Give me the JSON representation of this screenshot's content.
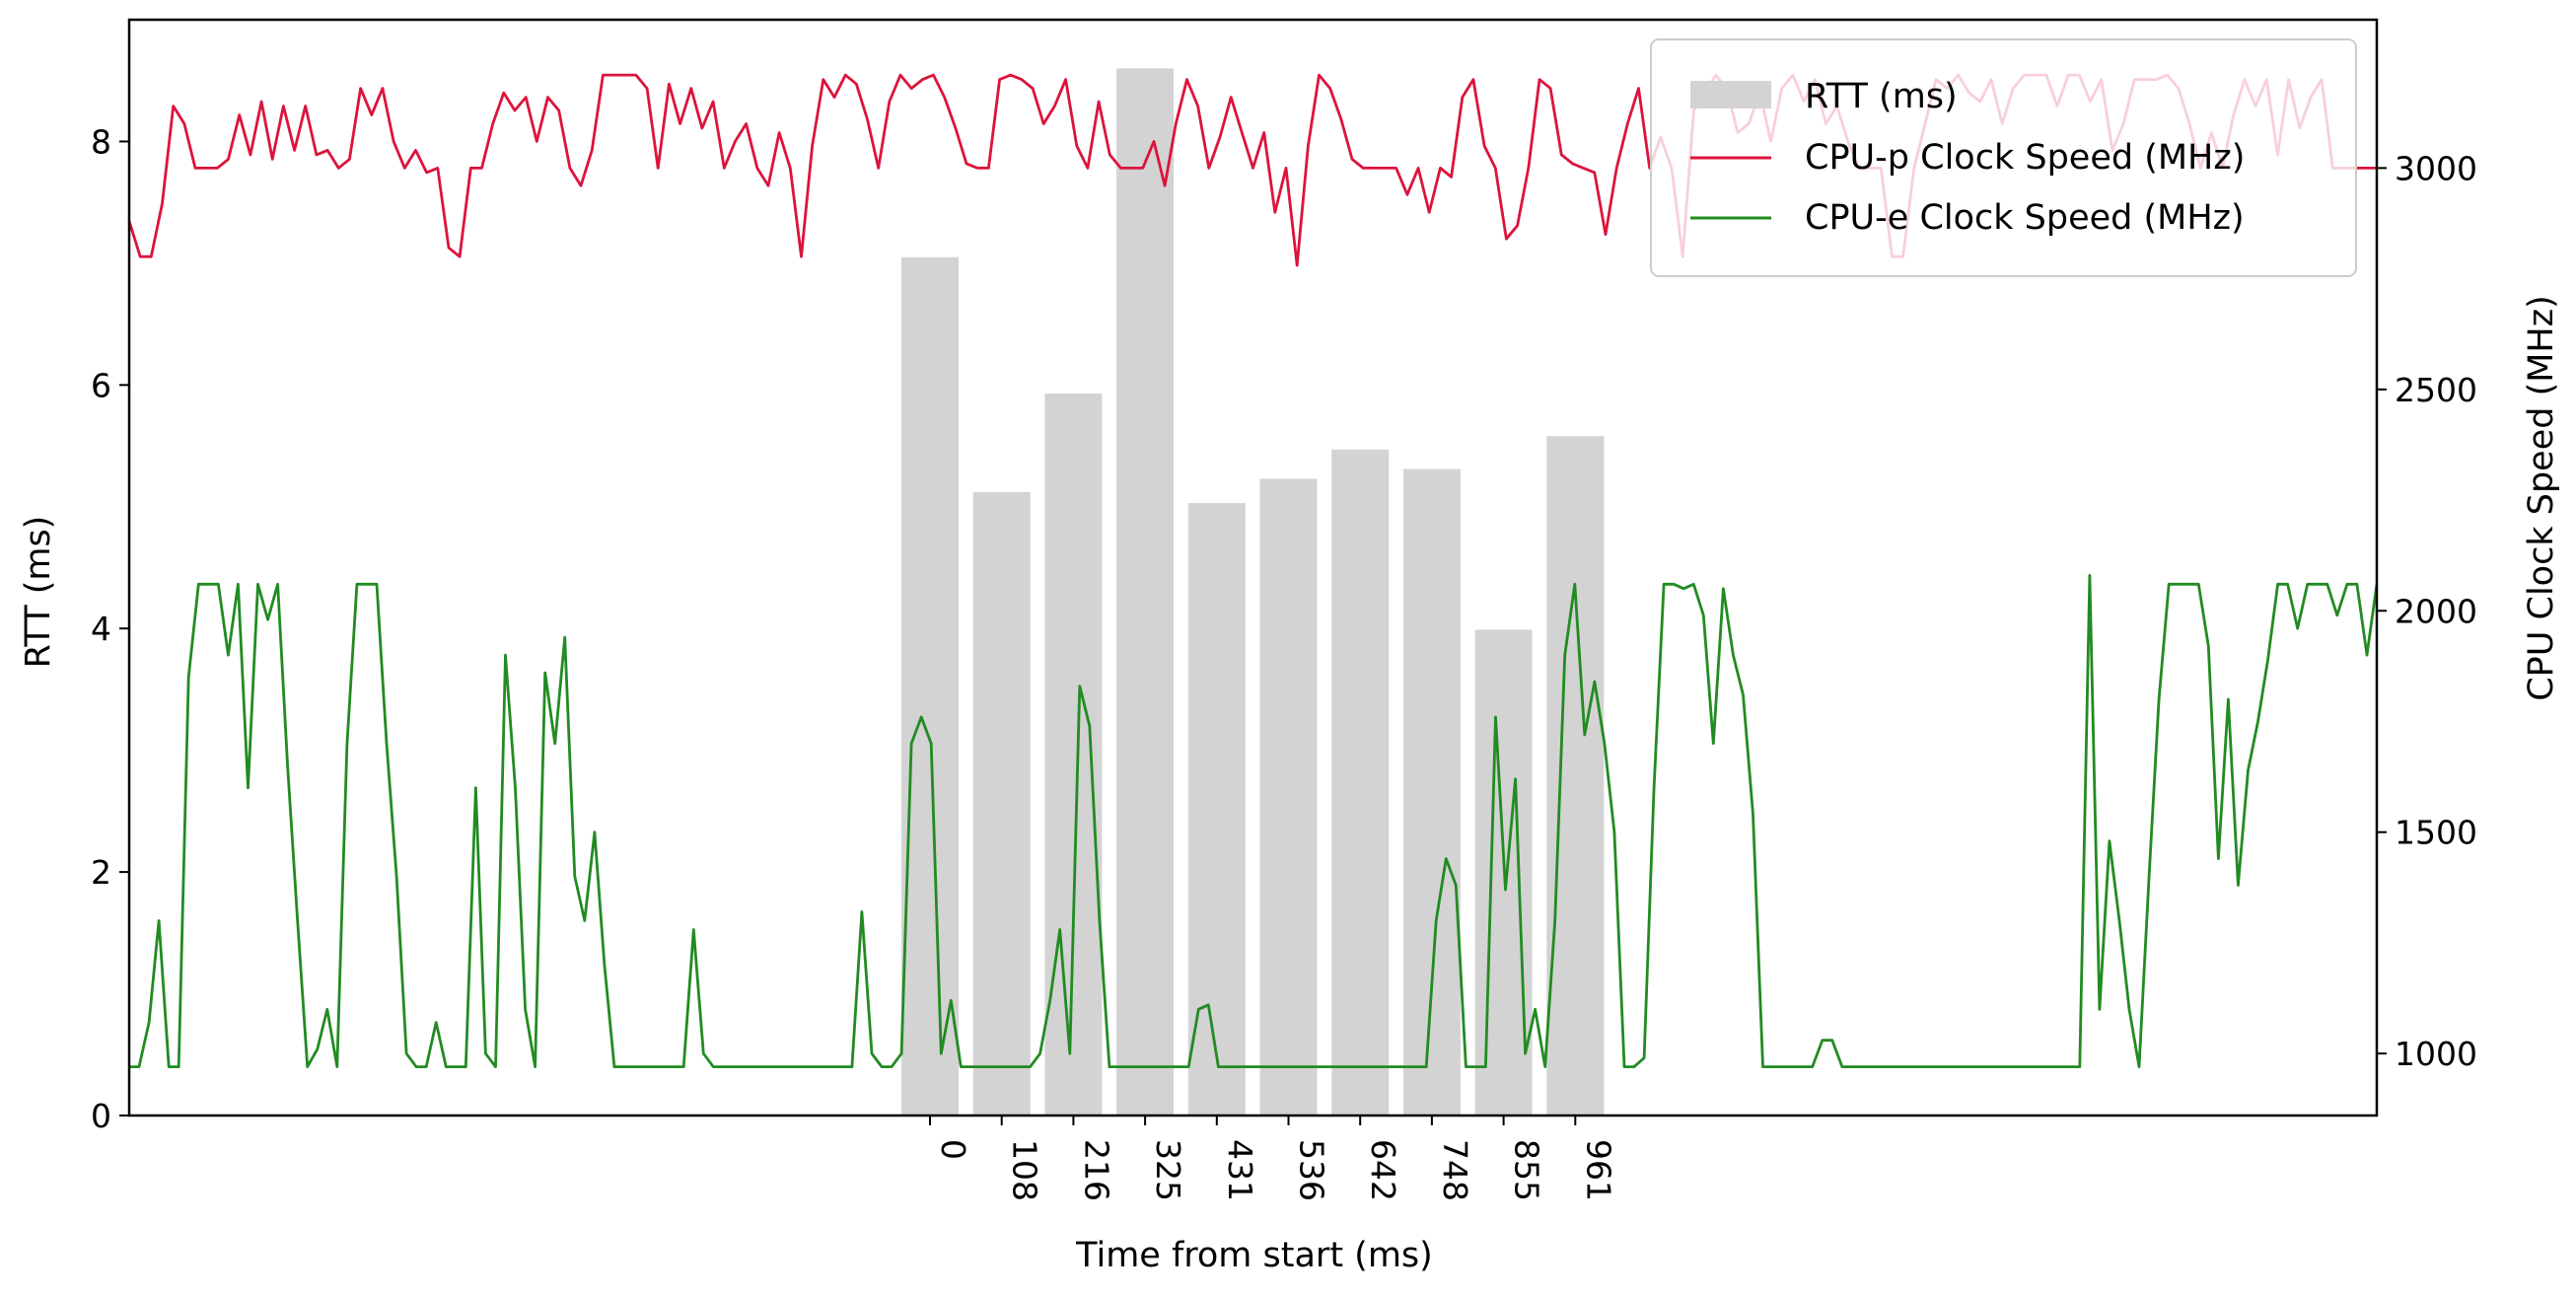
{
  "chart_data": {
    "type": "bar+line",
    "xlabel": "Time from start (ms)",
    "ylabel_left": "RTT (ms)",
    "ylabel_right": "CPU Clock Speed (MHz)",
    "ylim_left": [
      0,
      9.0
    ],
    "ylim_right": [
      860,
      3335
    ],
    "yticks_left": [
      "0",
      "2",
      "4",
      "6",
      "8"
    ],
    "yticks_right": [
      "1000",
      "1500",
      "2000",
      "2500",
      "3000"
    ],
    "rtt": {
      "name": "RTT (ms)",
      "color": "#d3d3d3",
      "categories": [
        "0",
        "108",
        "216",
        "325",
        "431",
        "536",
        "642",
        "748",
        "855",
        "961"
      ],
      "values": [
        7.05,
        5.12,
        5.93,
        8.6,
        5.03,
        5.23,
        5.47,
        5.31,
        3.99,
        5.58
      ]
    },
    "cpu_p": {
      "name": "CPU-p Clock Speed (MHz)",
      "color": "#dc143c",
      "values": [
        2880,
        2800,
        2800,
        2920,
        3140,
        3100,
        3000,
        3000,
        3000,
        3020,
        3120,
        3030,
        3150,
        3020,
        3140,
        3040,
        3140,
        3030,
        3040,
        3000,
        3020,
        3180,
        3120,
        3180,
        3060,
        3000,
        3040,
        2990,
        3000,
        2820,
        2800,
        3000,
        3000,
        3100,
        3170,
        3130,
        3160,
        3060,
        3160,
        3130,
        3000,
        2960,
        3040,
        3210,
        3210,
        3210,
        3210,
        3180,
        3000,
        3190,
        3100,
        3180,
        3090,
        3150,
        3000,
        3060,
        3100,
        3000,
        2960,
        3080,
        3000,
        2800,
        3050,
        3200,
        3160,
        3210,
        3190,
        3110,
        3000,
        3150,
        3210,
        3180,
        3200,
        3210,
        3160,
        3090,
        3010,
        3000,
        3000,
        3200,
        3210,
        3200,
        3180,
        3100,
        3140,
        3200,
        3050,
        3000,
        3150,
        3030,
        3000,
        3000,
        3000,
        3060,
        2960,
        3100,
        3200,
        3140,
        3000,
        3070,
        3160,
        3080,
        3000,
        3080,
        2900,
        3000,
        2780,
        3050,
        3210,
        3180,
        3110,
        3020,
        3000,
        3000,
        3000,
        3000,
        2940,
        3000,
        2900,
        3000,
        2980,
        3160,
        3200,
        3050,
        3000,
        2840,
        2870,
        3000,
        3200,
        3180,
        3030,
        3010,
        3000,
        2990,
        2850,
        3000,
        3100,
        3180,
        3000,
        3070,
        3000,
        2800,
        3130,
        3170,
        3210,
        3180,
        3080,
        3100,
        3170,
        3060,
        3180,
        3210,
        3150,
        3200,
        3100,
        3140,
        3060,
        3000,
        3000,
        3000,
        2800,
        2800,
        3000,
        3100,
        3200,
        3180,
        3210,
        3170,
        3150,
        3200,
        3100,
        3180,
        3210,
        3210,
        3210,
        3140,
        3210,
        3210,
        3150,
        3200,
        3040,
        3100,
        3200,
        3200,
        3200,
        3210,
        3180,
        3100,
        3000,
        3080,
        3000,
        3120,
        3200,
        3140,
        3200,
        3030,
        3200,
        3090,
        3160,
        3200,
        3000,
        3000,
        3000,
        3000,
        3000
      ],
      "legend_label": "CPU-p Clock Speed (MHz)"
    },
    "cpu_e": {
      "name": "CPU-e Clock Speed (MHz)",
      "color": "#228b22",
      "values": [
        970,
        970,
        1070,
        1300,
        970,
        970,
        1850,
        2060,
        2060,
        2060,
        1900,
        2060,
        1600,
        2060,
        1980,
        2060,
        1650,
        1300,
        970,
        1010,
        1100,
        970,
        1700,
        2060,
        2060,
        2060,
        1700,
        1400,
        1000,
        970,
        970,
        1070,
        970,
        970,
        970,
        1600,
        1000,
        970,
        1900,
        1600,
        1100,
        970,
        1860,
        1700,
        1940,
        1400,
        1300,
        1500,
        1200,
        970,
        970,
        970,
        970,
        970,
        970,
        970,
        970,
        1280,
        1000,
        970,
        970,
        970,
        970,
        970,
        970,
        970,
        970,
        970,
        970,
        970,
        970,
        970,
        970,
        970,
        1320,
        1000,
        970,
        970,
        1000,
        1700,
        1760,
        1700,
        1000,
        1120,
        970,
        970,
        970,
        970,
        970,
        970,
        970,
        970,
        1000,
        1120,
        1280,
        1000,
        1830,
        1740,
        1300,
        970,
        970,
        970,
        970,
        970,
        970,
        970,
        970,
        970,
        1100,
        1110,
        970,
        970,
        970,
        970,
        970,
        970,
        970,
        970,
        970,
        970,
        970,
        970,
        970,
        970,
        970,
        970,
        970,
        970,
        970,
        970,
        970,
        970,
        1300,
        1440,
        1380,
        970,
        970,
        970,
        1760,
        1370,
        1620,
        1000,
        1100,
        970,
        1300,
        1900,
        2060,
        1720,
        1840,
        1700,
        1500,
        970,
        970,
        990,
        1600,
        2060,
        2060,
        2050,
        2060,
        1990,
        1700,
        2050,
        1900,
        1810,
        1540,
        970,
        970,
        970,
        970,
        970,
        970,
        1030,
        1030,
        970,
        970,
        970,
        970,
        970,
        970,
        970,
        970,
        970,
        970,
        970,
        970,
        970,
        970,
        970,
        970,
        970,
        970,
        970,
        970,
        970,
        970,
        970,
        970,
        970,
        2080,
        1100,
        1480,
        1300,
        1100,
        970,
        1400,
        1800,
        2060,
        2060,
        2060,
        2060,
        1920,
        1440,
        1800,
        1380,
        1640,
        1750,
        1890,
        2060,
        2060,
        1960,
        2060,
        2060,
        2060,
        1990,
        2060,
        2060,
        1900,
        2060
      ],
      "legend_label": "CPU-e Clock Speed (MHz)"
    },
    "legend_position": "top-right"
  }
}
